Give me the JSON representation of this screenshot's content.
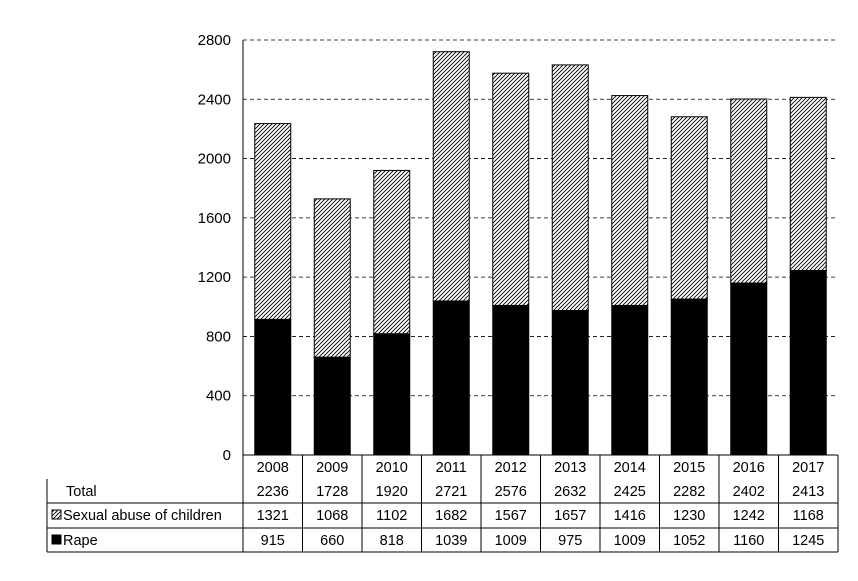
{
  "chart_data": {
    "type": "bar",
    "stacked": true,
    "categories": [
      "2008",
      "2009",
      "2010",
      "2011",
      "2012",
      "2013",
      "2014",
      "2015",
      "2016",
      "2017"
    ],
    "series": [
      {
        "name": "Rape",
        "values": [
          915,
          660,
          818,
          1039,
          1009,
          975,
          1009,
          1052,
          1160,
          1245
        ],
        "fill": "#000000"
      },
      {
        "name": "Sexual abuse of children",
        "values": [
          1321,
          1068,
          1102,
          1682,
          1567,
          1657,
          1416,
          1230,
          1242,
          1168
        ],
        "fill": "hatch"
      }
    ],
    "totals_label": "Total",
    "totals": [
      2236,
      1728,
      1920,
      2721,
      2576,
      2632,
      2425,
      2282,
      2402,
      2413
    ],
    "ylim": [
      0,
      2800
    ],
    "yticks": [
      0,
      400,
      800,
      1200,
      1600,
      2000,
      2400,
      2800
    ],
    "grid": true,
    "legend": "data-table-rows"
  },
  "colors": {
    "bar_solid": "#000000",
    "grid": "#000000",
    "background": "#ffffff"
  }
}
